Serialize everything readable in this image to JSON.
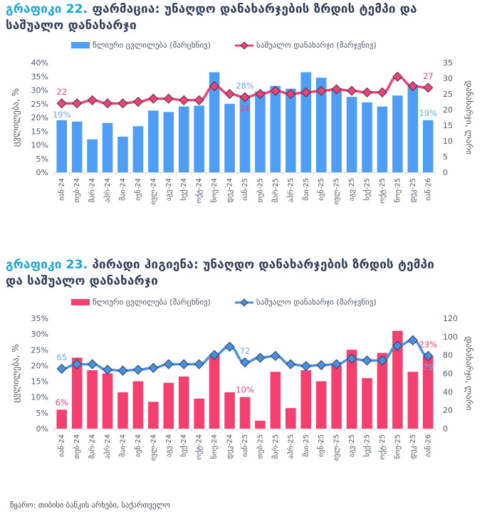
{
  "source_note": "წყარო: თიბისი ბანკის არხები, საქართველო",
  "chart_data": [
    {
      "type": "bar",
      "title_number": "გრაფიკი 22.",
      "title_line1": "ფარმაცია: უნაღდო დანახარჯების ზრდის ტემპი და",
      "title_line2": "საშუალო დანახარჯი",
      "categories": [
        "იან-24",
        "თებ-24",
        "მარ-24",
        "აპრ-24",
        "მაი-24",
        "ივნ-24",
        "ივლ-24",
        "აგვ-24",
        "სექ-24",
        "ოქტ-24",
        "ნოე-24",
        "დეკ-24",
        "იან-25",
        "თებ-25",
        "მარ-25",
        "აპრ-25",
        "მაი-25",
        "ივნ-25",
        "ივლ-25",
        "აგვ-25",
        "სექ-25",
        "ოქტ-25",
        "ნოე-25",
        "დეკ-25",
        "იან-26"
      ],
      "series": [
        {
          "name": "წლიური ცვლილება (მარცხნივ)",
          "kind": "bar",
          "axis": "left",
          "color": "#4f9ef5",
          "values": [
            19,
            18.5,
            12,
            18,
            13,
            16.8,
            22.5,
            22,
            24,
            24.3,
            36.5,
            25,
            28,
            29.5,
            31.5,
            30.5,
            36.5,
            34.5,
            30.5,
            27.5,
            25.5,
            24,
            28,
            32,
            19
          ]
        },
        {
          "name": "საშუალო დანახარჯი (მარჯვნივ)",
          "kind": "line",
          "axis": "right",
          "color": "#e8457a",
          "marker": "diamond",
          "values": [
            22,
            22,
            23,
            22,
            22,
            22.5,
            23.5,
            23.5,
            23,
            23,
            27.5,
            25,
            24,
            25,
            26,
            25,
            25.5,
            26,
            26.5,
            26,
            25.5,
            25.5,
            30.5,
            27.5,
            27
          ]
        }
      ],
      "ylabel": "ცვლილება, %",
      "y2label": "დანახარჯი, ლარი",
      "ylim": [
        0,
        40
      ],
      "yticks": [
        "0%",
        "5%",
        "10%",
        "15%",
        "20%",
        "25%",
        "30%",
        "35%",
        "40%"
      ],
      "y2lim": [
        0,
        35
      ],
      "y2ticks": [
        "0",
        "5",
        "10",
        "15",
        "20",
        "25",
        "30",
        "35"
      ],
      "annotations": [
        {
          "text": "22",
          "series": 1,
          "index": 0,
          "pos": "above"
        },
        {
          "text": "19%",
          "series": 0,
          "index": 0,
          "pos": "below-line"
        },
        {
          "text": "28%",
          "series": 0,
          "index": 12,
          "pos": "above-line"
        },
        {
          "text": "24",
          "series": 1,
          "index": 12,
          "pos": "below"
        },
        {
          "text": "27",
          "series": 1,
          "index": 24,
          "pos": "above"
        },
        {
          "text": "19%",
          "series": 0,
          "index": 24,
          "pos": "above"
        }
      ],
      "legend": "top",
      "grid": false
    },
    {
      "type": "bar",
      "title_number": "გრაფიკი 23.",
      "title_line1": "პირადი ჰიგიენა: უნაღდო დანახარჯების ზრდის ტემპი",
      "title_line2": "და საშუალო დანახარჯი",
      "categories": [
        "იან-24",
        "თებ-24",
        "მარ-24",
        "აპრ-24",
        "მაი-24",
        "ივნ-24",
        "ივლ-24",
        "აგვ-24",
        "სექ-24",
        "ოქტ-24",
        "ნოე-24",
        "დეკ-24",
        "იან-25",
        "თებ-25",
        "მარ-25",
        "აპრ-25",
        "მაი-25",
        "ივნ-25",
        "ივლ-25",
        "აგვ-25",
        "სექ-25",
        "ოქტ-25",
        "ნოე-25",
        "დეკ-25",
        "იან-26"
      ],
      "series": [
        {
          "name": "წლიური ცვლილება (მარცხნივ)",
          "kind": "bar",
          "axis": "left",
          "color": "#f43f6f",
          "values": [
            6,
            22.5,
            18.5,
            17.5,
            11.5,
            15,
            8.5,
            14.5,
            16.5,
            9.5,
            23.5,
            11.5,
            10,
            2.5,
            18,
            6.5,
            18.5,
            15,
            20,
            25,
            16,
            24,
            31,
            18,
            23
          ]
        },
        {
          "name": "საშუალო დანახარჯი (მარჯვნივ)",
          "kind": "line",
          "axis": "right",
          "color": "#4a90e2",
          "marker": "diamond",
          "values": [
            65,
            70,
            70,
            64,
            63,
            64,
            66,
            70,
            70,
            70,
            80,
            89,
            72,
            77,
            79,
            70,
            68,
            69,
            70,
            76,
            74,
            74,
            90,
            96,
            79
          ]
        }
      ],
      "ylabel": "ცვლილება, %",
      "y2label": "დანახარჯი, ლარი",
      "ylim": [
        0,
        35
      ],
      "yticks": [
        "0%",
        "5%",
        "10%",
        "15%",
        "20%",
        "25%",
        "30%",
        "35%"
      ],
      "y2lim": [
        0,
        120
      ],
      "y2ticks": [
        "0",
        "20",
        "40",
        "60",
        "80",
        "100",
        "120"
      ],
      "annotations": [
        {
          "text": "65",
          "series": 1,
          "index": 0,
          "pos": "above"
        },
        {
          "text": "6%",
          "series": 0,
          "index": 0,
          "pos": "above"
        },
        {
          "text": "72",
          "series": 1,
          "index": 12,
          "pos": "above"
        },
        {
          "text": "10%",
          "series": 0,
          "index": 12,
          "pos": "above"
        },
        {
          "text": "23%",
          "series": 0,
          "index": 24,
          "pos": "above-line"
        },
        {
          "text": "79",
          "series": 1,
          "index": 24,
          "pos": "below"
        }
      ],
      "legend": "top",
      "grid": false
    }
  ]
}
